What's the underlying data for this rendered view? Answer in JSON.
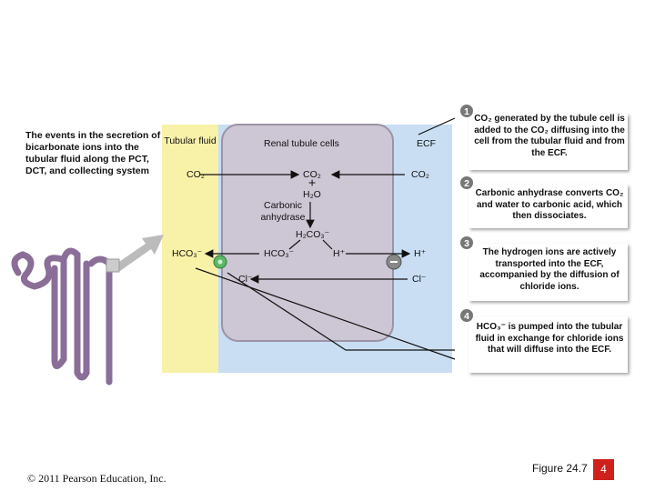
{
  "description": "The events in the secretion of bicarbonate ions into the tubular fluid along the PCT, DCT, and collecting system",
  "regions": {
    "tubular_fluid": "Tubular fluid",
    "cells": "Renal tubule cells",
    "ecf": "ECF"
  },
  "labels": {
    "co2_tubular": "CO₂",
    "co2_cell": "CO₂",
    "co2_ecf": "CO₂",
    "plus": "+",
    "h2o": "H₂O",
    "enzyme": "Carbonic anhydrase",
    "h2co3": "H₂CO₃⁻",
    "hco3_cell": "HCO₃⁻",
    "hco3_tubular": "HCO₃⁻",
    "h_cell": "H⁺",
    "h_ecf": "H⁺",
    "cl_cell": "Cl⁻",
    "cl_ecf": "Cl⁻"
  },
  "steps": [
    {
      "number": "1",
      "text": "CO₂ generated by the tubule cell is added to the CO₂ diffusing into the cell from the tubular fluid and from the ECF."
    },
    {
      "number": "2",
      "text": "Carbonic anhydrase converts CO₂ and water to carbonic acid, which then dissociates."
    },
    {
      "number": "3",
      "text": "The hydrogen ions are actively transported into the ECF, accompanied by the diffusion of chloride ions."
    },
    {
      "number": "4",
      "text": "HCO₃⁻ is pumped into the tubular fluid in exchange for chloride ions that will diffuse into the ECF."
    }
  ],
  "footer": {
    "copyright": "© 2011 Pearson Education, Inc.",
    "figure": "Figure 24.7",
    "page": "4"
  }
}
